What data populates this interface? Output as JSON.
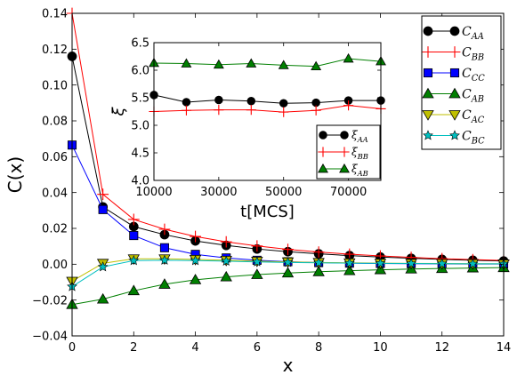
{
  "chart_data": [
    {
      "type": "line",
      "xlabel": "x",
      "ylabel": "C(x)",
      "xlim": [
        0,
        14
      ],
      "ylim": [
        -0.04,
        0.14
      ],
      "xticks": [
        0,
        2,
        4,
        6,
        8,
        10,
        12,
        14
      ],
      "xtick_labels": [
        "0",
        "2",
        "4",
        "6",
        "8",
        "10",
        "12",
        "14"
      ],
      "yticks": [
        -0.04,
        -0.02,
        0.0,
        0.02,
        0.04,
        0.06,
        0.08,
        0.1,
        0.12,
        0.14
      ],
      "ytick_labels": [
        "−0.04",
        "−0.02",
        "0.00",
        "0.02",
        "0.04",
        "0.06",
        "0.08",
        "0.10",
        "0.12",
        "0.14"
      ],
      "grid": false,
      "legend_position": "top-right",
      "x": [
        0,
        1,
        2,
        3,
        4,
        5,
        6,
        7,
        8,
        9,
        10,
        11,
        12,
        13,
        14
      ],
      "series": [
        {
          "name": "C",
          "sub": "AA",
          "color": "#000000",
          "marker": "circle",
          "values": [
            0.116,
            0.032,
            0.021,
            0.0165,
            0.013,
            0.0105,
            0.0085,
            0.007,
            0.0058,
            0.0048,
            0.004,
            0.0033,
            0.0027,
            0.0022,
            0.0018
          ]
        },
        {
          "name": "C",
          "sub": "BB",
          "color": "#ff0000",
          "marker": "plus",
          "values": [
            0.14,
            0.039,
            0.025,
            0.0195,
            0.0155,
            0.0125,
            0.0102,
            0.0083,
            0.0068,
            0.0056,
            0.0046,
            0.0038,
            0.0031,
            0.0026,
            0.0021
          ]
        },
        {
          "name": "C",
          "sub": "CC",
          "color": "#0000ff",
          "marker": "square",
          "values": [
            0.0665,
            0.0305,
            0.016,
            0.0092,
            0.0055,
            0.0035,
            0.0022,
            0.0014,
            0.0009,
            0.0006,
            0.0004,
            0.0003,
            0.0002,
            0.0001,
            0.0001
          ]
        },
        {
          "name": "C",
          "sub": "AB",
          "color": "#007f00",
          "marker": "triangle-up",
          "values": [
            -0.0225,
            -0.0195,
            -0.0148,
            -0.0112,
            -0.0087,
            -0.0071,
            -0.0058,
            -0.0049,
            -0.0042,
            -0.0036,
            -0.0031,
            -0.0027,
            -0.0024,
            -0.0021,
            -0.0019
          ]
        },
        {
          "name": "C",
          "sub": "AC",
          "color": "#bfbf00",
          "marker": "triangle-down",
          "values": [
            -0.0095,
            0.0005,
            0.003,
            0.003,
            0.0027,
            0.0022,
            0.0017,
            0.0013,
            0.001,
            0.0008,
            0.0006,
            0.0005,
            0.0004,
            0.0003,
            0.0002
          ]
        },
        {
          "name": "C",
          "sub": "BC",
          "color": "#00bfbf",
          "marker": "star",
          "values": [
            -0.0125,
            -0.0015,
            0.002,
            0.0022,
            0.002,
            0.0017,
            0.0013,
            0.001,
            0.0008,
            0.0006,
            0.0005,
            0.0004,
            0.0003,
            0.0002,
            0.0002
          ]
        }
      ]
    },
    {
      "type": "line",
      "xlabel": "t[MCS]",
      "ylabel": "ξ",
      "xlim": [
        10000,
        80000
      ],
      "ylim": [
        4.0,
        6.5
      ],
      "xticks": [
        10000,
        30000,
        50000,
        70000
      ],
      "xtick_labels": [
        "10000",
        "30000",
        "50000",
        "70000"
      ],
      "yticks": [
        4.0,
        4.5,
        5.0,
        5.5,
        6.0,
        6.5
      ],
      "ytick_labels": [
        "4.0",
        "4.5",
        "5.0",
        "5.5",
        "6.0",
        "6.5"
      ],
      "grid": false,
      "legend_position": "bottom-right",
      "x": [
        10000,
        20000,
        30000,
        40000,
        50000,
        60000,
        70000,
        80000
      ],
      "series": [
        {
          "name": "ξ",
          "sub": "AA",
          "color": "#000000",
          "marker": "circle",
          "values": [
            5.55,
            5.42,
            5.46,
            5.44,
            5.4,
            5.41,
            5.45,
            5.45
          ]
        },
        {
          "name": "ξ",
          "sub": "BB",
          "color": "#ff0000",
          "marker": "plus",
          "values": [
            5.25,
            5.27,
            5.28,
            5.28,
            5.24,
            5.27,
            5.36,
            5.3
          ]
        },
        {
          "name": "ξ",
          "sub": "AB",
          "color": "#007f00",
          "marker": "triangle-up",
          "values": [
            6.13,
            6.12,
            6.1,
            6.12,
            6.09,
            6.07,
            6.21,
            6.16
          ]
        }
      ]
    }
  ]
}
